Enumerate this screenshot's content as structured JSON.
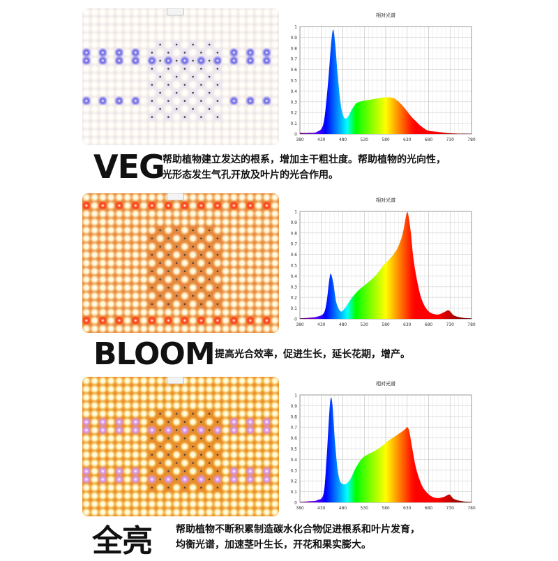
{
  "sections": [
    {
      "mode": "VEG",
      "description_lines": [
        "帮助植物建立发达的根系，增加主干粗壮度。帮助植物的光向性，",
        "光形态发生气孔开放及叶片的光合作用。"
      ],
      "panel": {
        "base": "#ebe6ef",
        "led_main": "#fffdf6",
        "led_glow": "#fff6dc",
        "accent": "#6a63e6",
        "accent_rows": [
          0.35,
          0.67
        ]
      },
      "chart_title": "相对光谱"
    },
    {
      "mode": "BLOOM",
      "description_lines": [
        "提高光合效率，促进生长，延长花期，增产。"
      ],
      "panel": {
        "base": "#e6893e",
        "led_main": "#fff2c8",
        "led_glow": "#ffc07a",
        "accent": "#ff3b12",
        "accent_rows": [
          0.1,
          0.9
        ]
      },
      "chart_title": "相对光谱"
    },
    {
      "mode": "全亮",
      "description_lines": [
        "帮助植物不断积累制造碳水化合物促进根系和叶片发育，",
        "均衡光谱，加速茎叶生长，开花和果实膨大。"
      ],
      "panel": {
        "base": "#e88e2c",
        "led_main": "#fff4bf",
        "led_glow": "#ffc84a",
        "accent": "#d996f5",
        "accent_rows": [
          0.35,
          0.7
        ]
      },
      "chart_title": "相对光谱"
    }
  ],
  "chart_data": [
    {
      "type": "area",
      "title": "相对光谱",
      "xlabel": "",
      "ylabel": "",
      "xlim": [
        380,
        780
      ],
      "ylim": [
        0,
        1
      ],
      "x_ticks": [
        380,
        430,
        480,
        530,
        580,
        630,
        680,
        730,
        780
      ],
      "y_ticks": [
        0,
        0.1,
        0.2,
        0.3,
        0.4,
        0.5,
        0.6,
        0.7,
        0.8,
        0.9,
        1
      ],
      "x": [
        380,
        400,
        420,
        435,
        445,
        452,
        457,
        462,
        468,
        475,
        482,
        490,
        500,
        510,
        520,
        530,
        545,
        560,
        575,
        590,
        600,
        610,
        620,
        630,
        640,
        650,
        660,
        670,
        680,
        700,
        720,
        740,
        760,
        780
      ],
      "values": [
        0.01,
        0.01,
        0.02,
        0.1,
        0.45,
        0.8,
        0.97,
        0.85,
        0.55,
        0.28,
        0.16,
        0.15,
        0.22,
        0.28,
        0.3,
        0.31,
        0.32,
        0.33,
        0.34,
        0.34,
        0.33,
        0.3,
        0.26,
        0.21,
        0.16,
        0.12,
        0.08,
        0.05,
        0.03,
        0.02,
        0.01,
        0.005,
        0.003,
        0.002
      ]
    },
    {
      "type": "area",
      "title": "相对光谱",
      "xlabel": "",
      "ylabel": "",
      "xlim": [
        380,
        780
      ],
      "ylim": [
        0,
        1
      ],
      "x_ticks": [
        380,
        430,
        480,
        530,
        580,
        630,
        680,
        730,
        780
      ],
      "y_ticks": [
        0,
        0.1,
        0.2,
        0.3,
        0.4,
        0.5,
        0.6,
        0.7,
        0.8,
        0.9,
        1
      ],
      "x": [
        380,
        400,
        420,
        435,
        442,
        448,
        452,
        458,
        465,
        475,
        485,
        500,
        515,
        530,
        545,
        560,
        575,
        590,
        600,
        610,
        620,
        628,
        632,
        638,
        645,
        655,
        665,
        680,
        700,
        715,
        725,
        730,
        740,
        760,
        780
      ],
      "values": [
        0.005,
        0.01,
        0.02,
        0.05,
        0.15,
        0.35,
        0.42,
        0.33,
        0.15,
        0.07,
        0.1,
        0.19,
        0.26,
        0.31,
        0.36,
        0.42,
        0.5,
        0.56,
        0.61,
        0.68,
        0.8,
        0.97,
        0.98,
        0.82,
        0.55,
        0.32,
        0.17,
        0.07,
        0.04,
        0.06,
        0.08,
        0.07,
        0.03,
        0.01,
        0.005
      ]
    },
    {
      "type": "area",
      "title": "相对光谱",
      "xlabel": "",
      "ylabel": "",
      "xlim": [
        380,
        780
      ],
      "ylim": [
        0,
        1
      ],
      "x_ticks": [
        380,
        430,
        480,
        530,
        580,
        630,
        680,
        730,
        780
      ],
      "y_ticks": [
        0,
        0.1,
        0.2,
        0.3,
        0.4,
        0.5,
        0.6,
        0.7,
        0.8,
        0.9,
        1
      ],
      "x": [
        380,
        400,
        420,
        435,
        442,
        448,
        452,
        456,
        462,
        470,
        480,
        495,
        510,
        525,
        540,
        555,
        570,
        585,
        600,
        615,
        625,
        630,
        635,
        642,
        650,
        660,
        670,
        685,
        700,
        715,
        725,
        730,
        740,
        760,
        780
      ],
      "values": [
        0.005,
        0.01,
        0.02,
        0.08,
        0.4,
        0.8,
        0.97,
        0.9,
        0.55,
        0.25,
        0.17,
        0.2,
        0.32,
        0.41,
        0.45,
        0.48,
        0.52,
        0.57,
        0.61,
        0.65,
        0.68,
        0.7,
        0.66,
        0.5,
        0.33,
        0.2,
        0.12,
        0.06,
        0.04,
        0.05,
        0.07,
        0.07,
        0.03,
        0.01,
        0.005
      ]
    }
  ]
}
